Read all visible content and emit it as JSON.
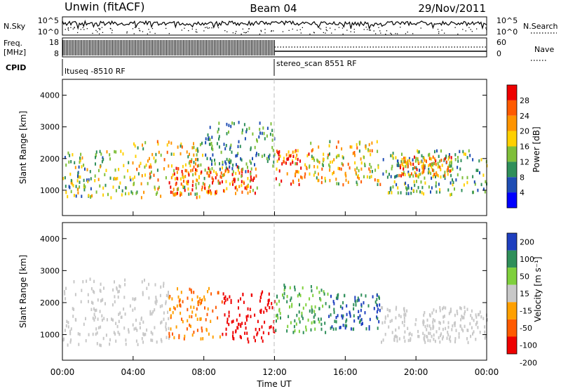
{
  "header": {
    "station": "Unwin (fitACF)",
    "beam": "Beam 04",
    "date": "29/Nov/2011"
  },
  "sky_panel": {
    "left_label": "N.Sky",
    "right_label": "N.Search",
    "left_ticks": [
      "10^5",
      "10^0"
    ],
    "right_ticks": [
      "10^5",
      "10^0"
    ]
  },
  "freq_panel": {
    "left_label_1": "Freq.",
    "left_label_2": "[MHz]",
    "right_label": "Nave",
    "left_ticks": [
      "18",
      "8"
    ],
    "right_ticks": [
      "60",
      "0"
    ]
  },
  "cpid": {
    "label": "CPID",
    "segments": [
      {
        "name": "ltuseq -8510 RF",
        "start_hour": 0
      },
      {
        "name": "stereo_scan 8551 RF",
        "start_hour": 12
      }
    ]
  },
  "x_axis": {
    "label": "Time UT",
    "ticks": [
      "00:00",
      "04:00",
      "08:00",
      "12:00",
      "16:00",
      "20:00",
      "00:00"
    ],
    "tick_hours": [
      0,
      4,
      8,
      12,
      16,
      20,
      24
    ]
  },
  "colors": {
    "power": [
      "#0000ff",
      "#1e4db4",
      "#2f8f5a",
      "#7fbf3a",
      "#ffd000",
      "#ff9400",
      "#ff5a00",
      "#ee0000"
    ],
    "velocity": [
      "#ee0000",
      "#ff5a00",
      "#ffa000",
      "#c8c8c8",
      "#7fd03c",
      "#2f8f5a",
      "#1e3fbf"
    ]
  },
  "chart_data": [
    {
      "type": "heatmap",
      "name": "Power",
      "xlabel": "",
      "ylabel": "Slant Range [km]",
      "xlim": [
        0,
        24
      ],
      "ylim": [
        200,
        4500
      ],
      "yticks": [
        1000,
        2000,
        3000,
        4000
      ],
      "colorbar": {
        "label": "Power [dB]",
        "ticks": [
          4,
          8,
          12,
          16,
          20,
          24,
          28
        ],
        "range": [
          0,
          32
        ]
      },
      "regions": [
        {
          "t0": 0,
          "t1": 4,
          "r0": 800,
          "r1": 2300,
          "value": 14
        },
        {
          "t0": 4,
          "t1": 8,
          "r0": 800,
          "r1": 2600,
          "value": 18
        },
        {
          "t0": 6,
          "t1": 11,
          "r0": 900,
          "r1": 1800,
          "value": 24
        },
        {
          "t0": 8,
          "t1": 12,
          "r0": 1600,
          "r1": 3200,
          "value": 10
        },
        {
          "t0": 12,
          "t1": 14,
          "r0": 1200,
          "r1": 2300,
          "value": 26
        },
        {
          "t0": 14,
          "t1": 18,
          "r0": 1200,
          "r1": 2600,
          "value": 18
        },
        {
          "t0": 18,
          "t1": 24,
          "r0": 900,
          "r1": 2300,
          "value": 12
        },
        {
          "t0": 19,
          "t1": 22,
          "r0": 1500,
          "r1": 2100,
          "value": 22
        }
      ]
    },
    {
      "type": "heatmap",
      "name": "Velocity",
      "xlabel": "Time UT",
      "ylabel": "Slant Range [km]",
      "xlim": [
        0,
        24
      ],
      "ylim": [
        200,
        4500
      ],
      "yticks": [
        1000,
        2000,
        3000,
        4000
      ],
      "colorbar": {
        "label": "Velocity [m s⁻¹]",
        "ticks": [
          200,
          100,
          50,
          15,
          -15,
          -50,
          -100,
          -200
        ]
      },
      "regions": [
        {
          "t0": 0,
          "t1": 6,
          "r0": 700,
          "r1": 2800,
          "value": 0
        },
        {
          "t0": 6,
          "t1": 9,
          "r0": 900,
          "r1": 2500,
          "value": -50
        },
        {
          "t0": 9,
          "t1": 12,
          "r0": 800,
          "r1": 2400,
          "value": -200
        },
        {
          "t0": 12,
          "t1": 15,
          "r0": 1100,
          "r1": 2600,
          "value": 50
        },
        {
          "t0": 15,
          "t1": 18,
          "r0": 1200,
          "r1": 2300,
          "value": 100
        },
        {
          "t0": 18,
          "t1": 24,
          "r0": 800,
          "r1": 1900,
          "value": 0
        }
      ]
    }
  ]
}
